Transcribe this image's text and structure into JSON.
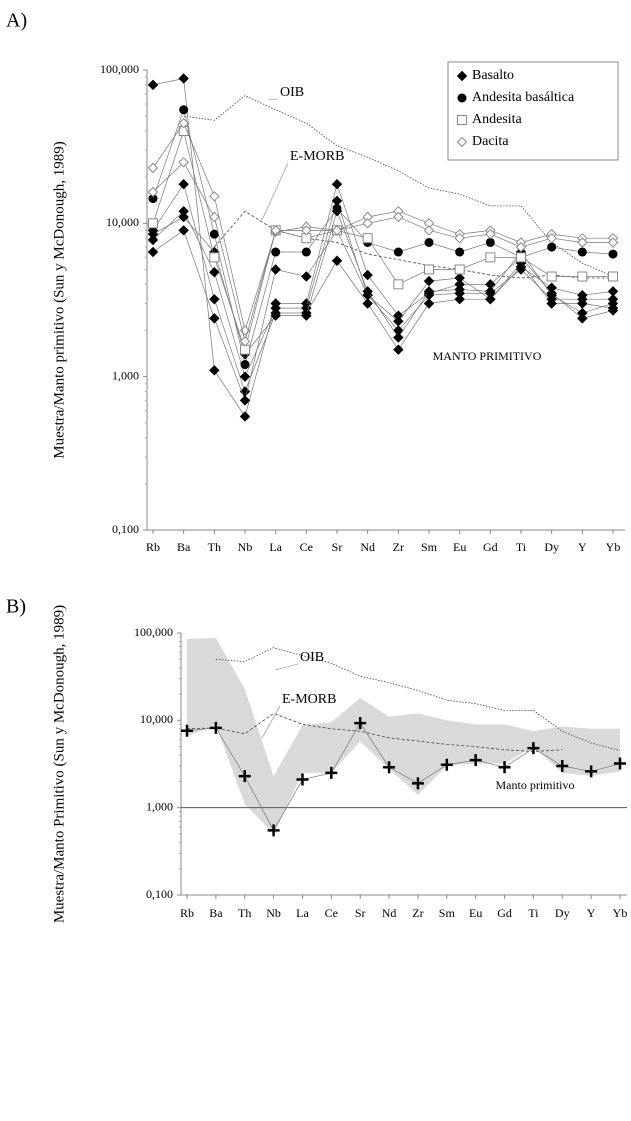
{
  "chart_data": [
    {
      "type": "line",
      "title": "A)",
      "y_label": "Muestra/Manto primitivo (Sun y McDonough, 1989)",
      "log_scale": true,
      "categories": [
        "Rb",
        "Ba",
        "Th",
        "Nb",
        "La",
        "Ce",
        "Sr",
        "Nd",
        "Zr",
        "Sm",
        "Eu",
        "Gd",
        "Ti",
        "Dy",
        "Y",
        "Yb"
      ],
      "ylim": [
        0.1,
        100
      ],
      "yticks": [
        {
          "value": 0.1,
          "label": "0,100"
        },
        {
          "value": 1,
          "label": "1,000"
        },
        {
          "value": 10,
          "label": "10,000"
        },
        {
          "value": 100,
          "label": "100,000"
        }
      ],
      "legend": "top-right",
      "series": [
        {
          "name": "Basalto",
          "color": "#000000",
          "marker": "diamond",
          "samples": [
            [
              80,
              88,
              1.1,
              0.55,
              3,
              3,
              18,
              4.6,
              2.5,
              3.5,
              4,
              4,
              6,
              3.5,
              2.4,
              2.7
            ],
            [
              9,
              18,
              3.2,
              0.8,
              2.6,
              2.6,
              5.7,
              3,
              1.5,
              3,
              3.2,
              3.2,
              5.5,
              3,
              3,
              2.8
            ],
            [
              7.8,
              12,
              4.8,
              1,
              2.8,
              2.8,
              14,
              3.4,
              2,
              3.4,
              3.5,
              3.5,
              5,
              3.2,
              3.2,
              3.2
            ],
            [
              6.5,
              9,
              2.4,
              0.7,
              5,
              4.5,
              9,
              3.4,
              2.3,
              4.2,
              4.4,
              3.2,
              5.2,
              3.8,
              3.4,
              3.6
            ],
            [
              8.5,
              11,
              6.5,
              1.4,
              2.5,
              2.5,
              12,
              3.6,
              1.8,
              3.6,
              3.7,
              3.6,
              6.5,
              3.4,
              2.6,
              3
            ]
          ]
        },
        {
          "name": "Andesita basáltica",
          "color": "#000000",
          "marker": "circle",
          "samples": [
            [
              14.5,
              55,
              8.5,
              1.2,
              6.5,
              6.5,
              12.5,
              7.5,
              6.5,
              7.5,
              6.5,
              7.5,
              6,
              7,
              6.5,
              6.3
            ]
          ]
        },
        {
          "name": "Andesita",
          "color": "#888888",
          "marker": "square-open",
          "samples": [
            [
              10,
              40,
              6,
              1.5,
              9,
              8,
              9,
              8,
              4,
              5,
              5,
              6,
              6,
              4.5,
              4.5,
              4.5
            ]
          ]
        },
        {
          "name": "Dacita",
          "color": "#888888",
          "marker": "diamond-open",
          "samples": [
            [
              23,
              45,
              15,
              2,
              8.8,
              9.5,
              9,
              11,
              12,
              10,
              8.5,
              9,
              7.5,
              8.5,
              8,
              8
            ],
            [
              16,
              25,
              11,
              1.7,
              9,
              9,
              9,
              10,
              11,
              9,
              8,
              8.5,
              7,
              8,
              7.5,
              7.5
            ]
          ]
        }
      ],
      "reference_lines": [
        {
          "label": "OIB",
          "values": [
            null,
            50,
            47,
            68,
            55,
            45,
            32,
            27,
            22,
            17,
            15.5,
            13,
            13,
            7.5,
            5.5,
            4.5
          ]
        },
        {
          "label": "E-MORB",
          "values": [
            null,
            null,
            7,
            12,
            9,
            8,
            7.5,
            6.3,
            5.8,
            5.3,
            5,
            4.6,
            4.4,
            4.6,
            4.4,
            4.4
          ]
        }
      ],
      "annotations": [
        "MANTO PRIMITIVO"
      ]
    },
    {
      "type": "line",
      "title": "B)",
      "y_label": "Muestra/Manto Primitivo (Sun y McDonough, 1989)",
      "log_scale": true,
      "categories": [
        "Rb",
        "Ba",
        "Th",
        "Nb",
        "La",
        "Ce",
        "Sr",
        "Nd",
        "Zr",
        "Sm",
        "Eu",
        "Gd",
        "Ti",
        "Dy",
        "Y",
        "Yb"
      ],
      "ylim": [
        0.1,
        100
      ],
      "yticks": [
        {
          "value": 0.1,
          "label": "0,100"
        },
        {
          "value": 1,
          "label": "1,000"
        },
        {
          "value": 10,
          "label": "10,000"
        },
        {
          "value": 100,
          "label": "100,000"
        }
      ],
      "range": {
        "color": "#d9d9d9",
        "lower": [
          6.5,
          9,
          1.1,
          0.5,
          2.5,
          2.5,
          5.7,
          2.8,
          1.4,
          3,
          3.2,
          3.2,
          5,
          2.5,
          2.3,
          2.6
        ],
        "upper": [
          85,
          88,
          23,
          2.3,
          8.8,
          9.5,
          18,
          11,
          12,
          10,
          9,
          9,
          7.5,
          8.5,
          8,
          8
        ]
      },
      "series": [
        {
          "color": "#000000",
          "marker": "plus",
          "samples": [
            [
              7.6,
              8.2,
              2.3,
              0.55,
              2.1,
              2.5,
              9.3,
              2.9,
              1.9,
              3.1,
              3.5,
              2.9,
              4.8,
              3,
              2.6,
              3.2
            ]
          ]
        }
      ],
      "reference_lines": [
        {
          "label": "OIB",
          "values": [
            null,
            50,
            47,
            68,
            55,
            45,
            32,
            27,
            22,
            17,
            15.5,
            13,
            13,
            7.5,
            5.5,
            4.5
          ]
        },
        {
          "label": "E-MORB",
          "values": [
            8,
            8.2,
            7,
            12,
            9,
            8,
            7.5,
            6.3,
            5.8,
            5.3,
            5,
            4.6,
            4.4,
            4.6,
            null,
            null
          ]
        }
      ],
      "baseline": {
        "value": 1,
        "label": "Manto primitivo"
      }
    }
  ]
}
